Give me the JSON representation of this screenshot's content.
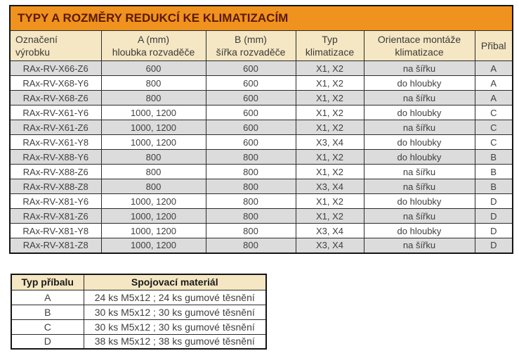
{
  "colors": {
    "title_background": "#f0921e",
    "title_text": "#5b1a00",
    "header_background": "#f5e7c3",
    "row_alt_background": "#dcdcdc",
    "row_background": "#ffffff",
    "border": "#141414",
    "body_text": "#3f3f3f"
  },
  "main_table": {
    "title": "TYPY A ROZMĚRY REDUKCÍ KE KLIMATIZACÍM",
    "columns": [
      {
        "line1": "Označení",
        "line2": "výrobku"
      },
      {
        "line1": "A (mm)",
        "line2": "hloubka rozvaděče"
      },
      {
        "line1": "B (mm)",
        "line2": "šířka rozvaděče"
      },
      {
        "line1": "Typ",
        "line2": "klimatizace"
      },
      {
        "line1": "Orientace montáže",
        "line2": "klimatizace"
      },
      {
        "line1": "Přibal",
        "line2": ""
      }
    ],
    "rows": [
      [
        "RAx-RV-X66-Z6",
        "600",
        "600",
        "X1, X2",
        "na šířku",
        "A"
      ],
      [
        "RAx-RV-X68-Y6",
        "800",
        "600",
        "X1, X2",
        "do hloubky",
        "A"
      ],
      [
        "RAx-RV-X68-Z6",
        "800",
        "600",
        "X1, X2",
        "na šířku",
        "A"
      ],
      [
        "RAx-RV-X61-Y6",
        "1000, 1200",
        "600",
        "X1, X2",
        "do hloubky",
        "C"
      ],
      [
        "RAx-RV-X61-Z6",
        "1000, 1200",
        "600",
        "X1, X2",
        "na šířku",
        "C"
      ],
      [
        "RAx-RV-X61-Y8",
        "1000, 1200",
        "600",
        "X3, X4",
        "do hloubky",
        "C"
      ],
      [
        "RAx-RV-X88-Y6",
        "800",
        "800",
        "X1, X2",
        "do hloubky",
        "B"
      ],
      [
        "RAx-RV-X88-Z6",
        "800",
        "800",
        "X1, X2",
        "na šířku",
        "B"
      ],
      [
        "RAx-RV-X88-Z8",
        "800",
        "800",
        "X3, X4",
        "na šířku",
        "B"
      ],
      [
        "RAx-RV-X81-Y6",
        "1000, 1200",
        "800",
        "X1, X2",
        "do hloubky",
        "D"
      ],
      [
        "RAx-RV-X81-Z6",
        "1000, 1200",
        "800",
        "X1, X2",
        "na šířku",
        "D"
      ],
      [
        "RAx-RV-X81-Y8",
        "1000, 1200",
        "800",
        "X3, X4",
        "do hloubky",
        "D"
      ],
      [
        "RAx-RV-X81-Z8",
        "1000, 1200",
        "800",
        "X3, X4",
        "na šířku",
        "D"
      ]
    ]
  },
  "accessory_table": {
    "headers": [
      "Typ příbalu",
      "Spojovací materiál"
    ],
    "rows": [
      [
        "A",
        "24 ks M5x12 ; 24 ks gumové těsnění"
      ],
      [
        "B",
        "30 ks M5x12 ; 30 ks gumové těsnění"
      ],
      [
        "C",
        "30 ks M5x12 ; 30 ks gumové těsnění"
      ],
      [
        "D",
        "38 ks M5x12 ; 38 ks gumové těsnění"
      ]
    ]
  }
}
